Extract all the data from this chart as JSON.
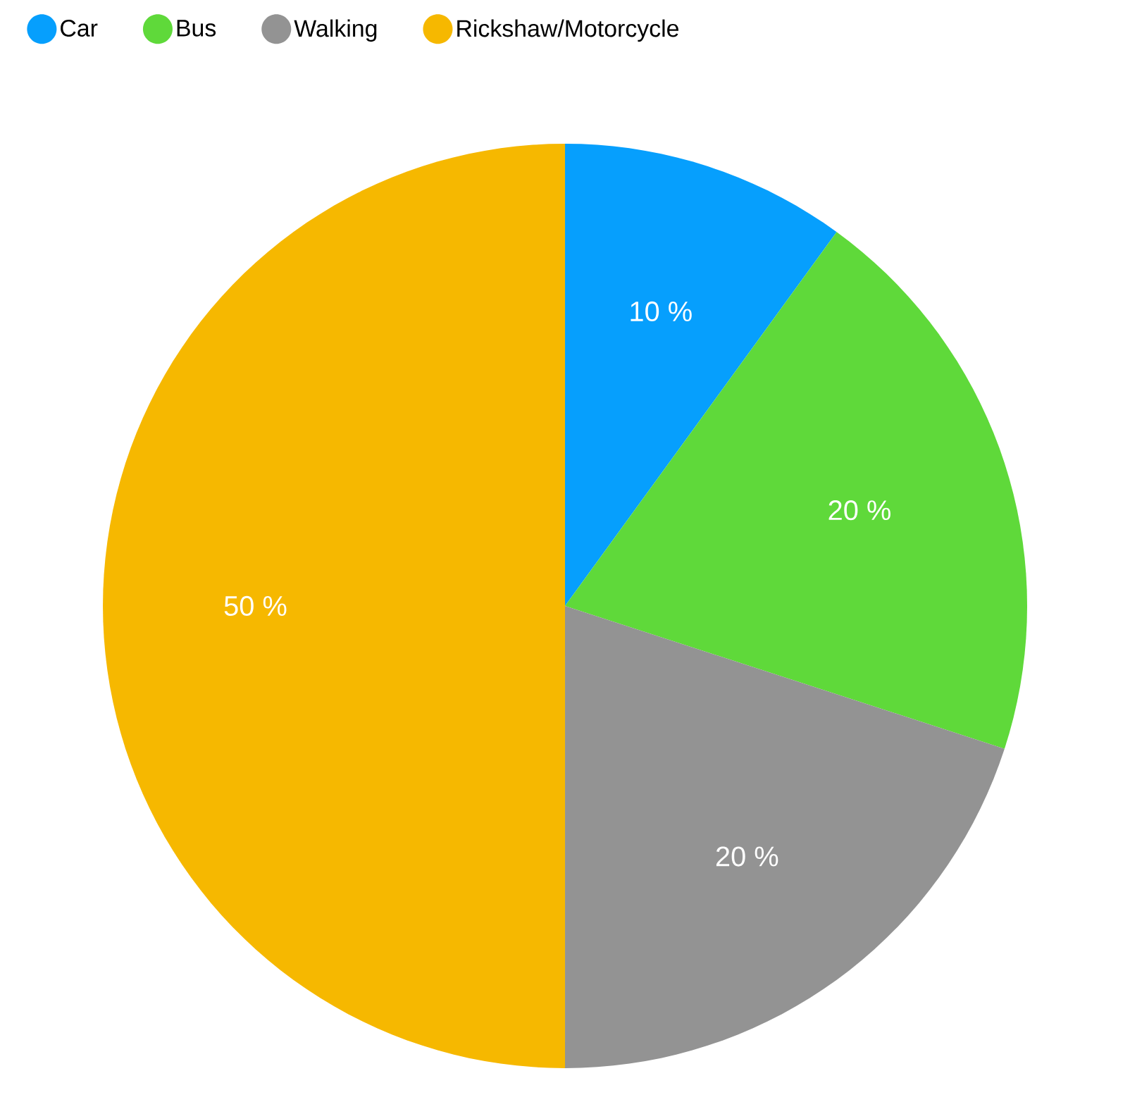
{
  "chart_data": {
    "type": "pie",
    "categories": [
      "Car",
      "Bus",
      "Walking",
      "Rickshaw/Motorcycle"
    ],
    "values": [
      10,
      20,
      20,
      50
    ],
    "colors": [
      "#069ffd",
      "#5fd93a",
      "#939393",
      "#f6b800"
    ],
    "value_labels": [
      "10 %",
      "20 %",
      "20 %",
      "50 %"
    ],
    "legend": "top"
  }
}
